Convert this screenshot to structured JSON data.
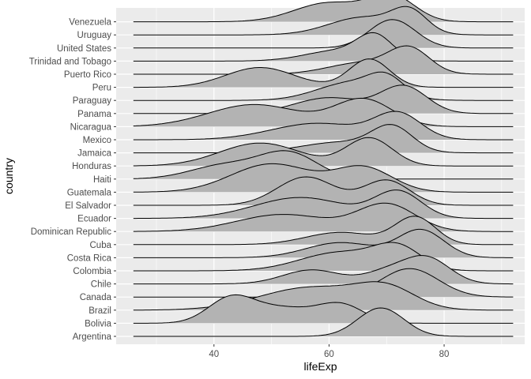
{
  "chart_data": {
    "type": "ridgeline",
    "xlabel": "lifeExp",
    "ylabel": "country",
    "xlim": [
      23,
      94
    ],
    "x_ticks": [
      40,
      60,
      80
    ],
    "grid": true,
    "fill_color": "#b3b3b3",
    "panel_color": "#ebebeb",
    "series": [
      {
        "name": "Argentina",
        "range": [
          26,
          92
        ],
        "components": [
          {
            "mu": 69,
            "sd": 4,
            "w": 1
          }
        ]
      },
      {
        "name": "Bolivia",
        "range": [
          26,
          92
        ],
        "components": [
          {
            "mu": 43,
            "sd": 4,
            "w": 0.95
          },
          {
            "mu": 52,
            "sd": 5,
            "w": 0.55
          },
          {
            "mu": 62,
            "sd": 4,
            "w": 0.7
          }
        ]
      },
      {
        "name": "Brazil",
        "range": [
          26,
          92
        ],
        "components": [
          {
            "mu": 57,
            "sd": 9,
            "w": 0.9
          },
          {
            "mu": 70,
            "sd": 5,
            "w": 0.75
          }
        ]
      },
      {
        "name": "Canada",
        "range": [
          26,
          92
        ],
        "components": [
          {
            "mu": 74,
            "sd": 5,
            "w": 1
          }
        ]
      },
      {
        "name": "Chile",
        "range": [
          26,
          92
        ],
        "components": [
          {
            "mu": 57,
            "sd": 5,
            "w": 0.55
          },
          {
            "mu": 70,
            "sd": 4,
            "w": 0.45
          },
          {
            "mu": 77,
            "sd": 4,
            "w": 1
          }
        ]
      },
      {
        "name": "Colombia",
        "range": [
          26,
          92
        ],
        "components": [
          {
            "mu": 62,
            "sd": 7,
            "w": 0.75
          },
          {
            "mu": 72,
            "sd": 4,
            "w": 0.85
          }
        ]
      },
      {
        "name": "Costa Rica",
        "range": [
          26,
          92
        ],
        "components": [
          {
            "mu": 62,
            "sd": 6,
            "w": 0.55
          },
          {
            "mu": 76,
            "sd": 4,
            "w": 1
          }
        ]
      },
      {
        "name": "Cuba",
        "range": [
          26,
          92
        ],
        "components": [
          {
            "mu": 62,
            "sd": 6,
            "w": 0.45
          },
          {
            "mu": 75,
            "sd": 3.5,
            "w": 1
          }
        ]
      },
      {
        "name": "Dominican Republic",
        "range": [
          26,
          92
        ],
        "components": [
          {
            "mu": 52,
            "sd": 8,
            "w": 0.6
          },
          {
            "mu": 70,
            "sd": 5,
            "w": 0.95
          }
        ]
      },
      {
        "name": "Ecuador",
        "range": [
          26,
          92
        ],
        "components": [
          {
            "mu": 55,
            "sd": 8,
            "w": 0.6
          },
          {
            "mu": 72,
            "sd": 4,
            "w": 0.75
          }
        ]
      },
      {
        "name": "El Salvador",
        "range": [
          26,
          92
        ],
        "components": [
          {
            "mu": 56,
            "sd": 5,
            "w": 0.8
          },
          {
            "mu": 70,
            "sd": 4,
            "w": 0.7
          }
        ]
      },
      {
        "name": "Guatemala",
        "range": [
          26,
          92
        ],
        "components": [
          {
            "mu": 50,
            "sd": 7,
            "w": 0.7
          },
          {
            "mu": 66,
            "sd": 5,
            "w": 0.6
          }
        ]
      },
      {
        "name": "Haiti",
        "range": [
          26,
          92
        ],
        "components": [
          {
            "mu": 42,
            "sd": 6,
            "w": 0.55
          },
          {
            "mu": 53,
            "sd": 5,
            "w": 1
          }
        ]
      },
      {
        "name": "Honduras",
        "range": [
          26,
          92
        ],
        "components": [
          {
            "mu": 48,
            "sd": 7,
            "w": 0.7
          },
          {
            "mu": 67,
            "sd": 4,
            "w": 0.85
          }
        ]
      },
      {
        "name": "Jamaica",
        "range": [
          26,
          92
        ],
        "components": [
          {
            "mu": 62,
            "sd": 7,
            "w": 0.45
          },
          {
            "mu": 71,
            "sd": 3.5,
            "w": 1
          }
        ]
      },
      {
        "name": "Mexico",
        "range": [
          26,
          92
        ],
        "components": [
          {
            "mu": 58,
            "sd": 8,
            "w": 0.5
          },
          {
            "mu": 72,
            "sd": 4,
            "w": 0.75
          }
        ]
      },
      {
        "name": "Nicaragua",
        "range": [
          26,
          92
        ],
        "components": [
          {
            "mu": 47,
            "sd": 8,
            "w": 0.45
          },
          {
            "mu": 66,
            "sd": 5,
            "w": 0.55
          }
        ]
      },
      {
        "name": "Panama",
        "range": [
          26,
          92
        ],
        "components": [
          {
            "mu": 60,
            "sd": 6,
            "w": 0.5
          },
          {
            "mu": 73,
            "sd": 4,
            "w": 0.85
          }
        ]
      },
      {
        "name": "Paraguay",
        "range": [
          26,
          92
        ],
        "components": [
          {
            "mu": 64,
            "sd": 6,
            "w": 0.6
          },
          {
            "mu": 70,
            "sd": 3,
            "w": 0.55
          }
        ]
      },
      {
        "name": "Peru",
        "range": [
          26,
          92
        ],
        "components": [
          {
            "mu": 48,
            "sd": 6,
            "w": 0.7
          },
          {
            "mu": 67,
            "sd": 3.5,
            "w": 1
          }
        ]
      },
      {
        "name": "Puerto Rico",
        "range": [
          26,
          92
        ],
        "components": [
          {
            "mu": 66,
            "sd": 6,
            "w": 0.5
          },
          {
            "mu": 74,
            "sd": 3.5,
            "w": 1
          }
        ]
      },
      {
        "name": "Trinidad and Tobago",
        "range": [
          26,
          92
        ],
        "components": [
          {
            "mu": 62,
            "sd": 6,
            "w": 0.5
          },
          {
            "mu": 68,
            "sd": 3,
            "w": 1
          }
        ]
      },
      {
        "name": "United States",
        "range": [
          26,
          92
        ],
        "components": [
          {
            "mu": 71,
            "sd": 4,
            "w": 1
          }
        ]
      },
      {
        "name": "Uruguay",
        "range": [
          26,
          92
        ],
        "components": [
          {
            "mu": 66,
            "sd": 6,
            "w": 0.6
          },
          {
            "mu": 74,
            "sd": 3,
            "w": 0.7
          }
        ]
      },
      {
        "name": "Venezuela",
        "range": [
          26,
          92
        ],
        "components": [
          {
            "mu": 60,
            "sd": 6,
            "w": 0.7
          },
          {
            "mu": 71,
            "sd": 4,
            "w": 0.9
          }
        ]
      }
    ]
  }
}
